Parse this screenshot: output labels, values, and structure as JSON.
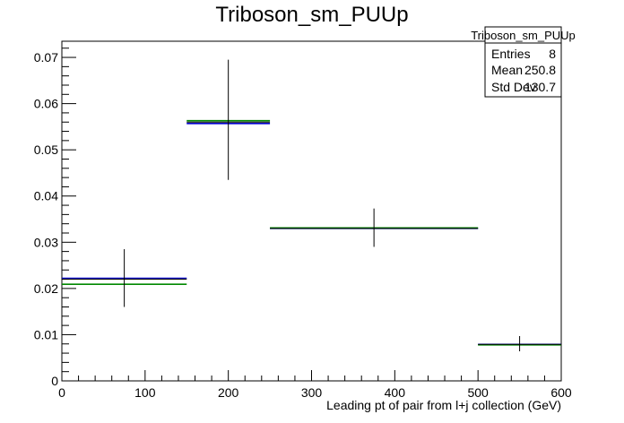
{
  "chart_data": {
    "type": "histogram",
    "title": "Triboson_sm_PUUp",
    "xlabel": "Leading pt of pair from l+j collection (GeV)",
    "ylabel": "",
    "xlim": [
      0,
      600
    ],
    "ylim": [
      0,
      0.0735
    ],
    "x_ticks": [
      0,
      100,
      200,
      300,
      400,
      500,
      600
    ],
    "y_ticks": [
      0,
      0.01,
      0.02,
      0.03,
      0.04,
      0.05,
      0.06,
      0.07
    ],
    "x_tick_labels": [
      "0",
      "100",
      "200",
      "300",
      "400",
      "500",
      "600"
    ],
    "y_tick_labels": [
      "0",
      "0.01",
      "0.02",
      "0.03",
      "0.04",
      "0.05",
      "0.06",
      "0.07"
    ],
    "grid": false,
    "series": [
      {
        "color": "#000000",
        "style": "points-with-errors",
        "bins": [
          {
            "x_low": 0,
            "x_high": 150,
            "x_center": 75,
            "value": 0.022,
            "err_low": 0.006,
            "err_high": 0.0065
          },
          {
            "x_low": 150,
            "x_high": 250,
            "x_center": 200,
            "value": 0.056,
            "err_low": 0.0125,
            "err_high": 0.0135
          },
          {
            "x_low": 250,
            "x_high": 500,
            "x_center": 375,
            "value": 0.033,
            "err_low": 0.004,
            "err_high": 0.0043
          },
          {
            "x_low": 500,
            "x_high": 600,
            "x_center": 550,
            "value": 0.0079,
            "err_low": 0.0015,
            "err_high": 0.0018
          }
        ]
      },
      {
        "color": "#0000cc",
        "style": "horizontal-bins",
        "bins": [
          {
            "x_low": 0,
            "x_high": 150,
            "value": 0.0222
          },
          {
            "x_low": 150,
            "x_high": 250,
            "value": 0.0557
          },
          {
            "x_low": 250,
            "x_high": 500,
            "value": 0.033
          },
          {
            "x_low": 500,
            "x_high": 600,
            "value": 0.0079
          }
        ]
      },
      {
        "color": "#008800",
        "style": "horizontal-bins",
        "bins": [
          {
            "x_low": 0,
            "x_high": 150,
            "value": 0.0209
          },
          {
            "x_low": 150,
            "x_high": 250,
            "value": 0.0563
          },
          {
            "x_low": 250,
            "x_high": 500,
            "value": 0.0331
          },
          {
            "x_low": 500,
            "x_high": 600,
            "value": 0.0078
          }
        ]
      }
    ],
    "stats_box": {
      "title": "Triboson_sm_PUUp",
      "placement": "top-right",
      "rows": [
        {
          "label": "Entries",
          "value": "8"
        },
        {
          "label": "Mean",
          "value": "250.8"
        },
        {
          "label": "Std Dev",
          "value": "130.7"
        }
      ]
    }
  }
}
